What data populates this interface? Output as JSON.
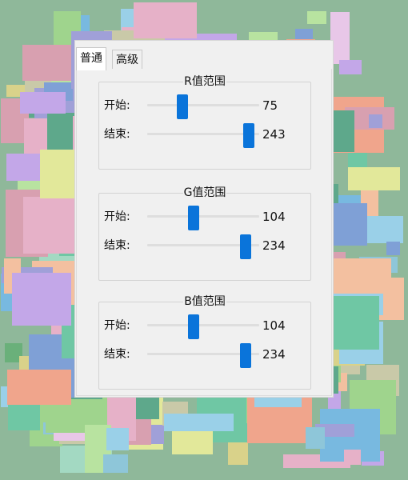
{
  "tabs": [
    {
      "label": "普通",
      "active": true
    },
    {
      "label": "高级",
      "active": false
    }
  ],
  "groups": [
    {
      "title": "R值范围",
      "start": {
        "label": "开始:",
        "value": 75,
        "display": "75"
      },
      "end": {
        "label": "结束:",
        "value": 243,
        "display": "243"
      }
    },
    {
      "title": "G值范围",
      "start": {
        "label": "开始:",
        "value": 104,
        "display": "104"
      },
      "end": {
        "label": "结束:",
        "value": 234,
        "display": "234"
      }
    },
    {
      "title": "B值范围",
      "start": {
        "label": "开始:",
        "value": 104,
        "display": "104"
      },
      "end": {
        "label": "结束:",
        "value": 234,
        "display": "234"
      }
    }
  ],
  "slider_range": [
    0,
    255
  ],
  "colors": {
    "accent": "#0a74da",
    "panel_bg": "#f0f0f0",
    "track": "#dedede"
  }
}
